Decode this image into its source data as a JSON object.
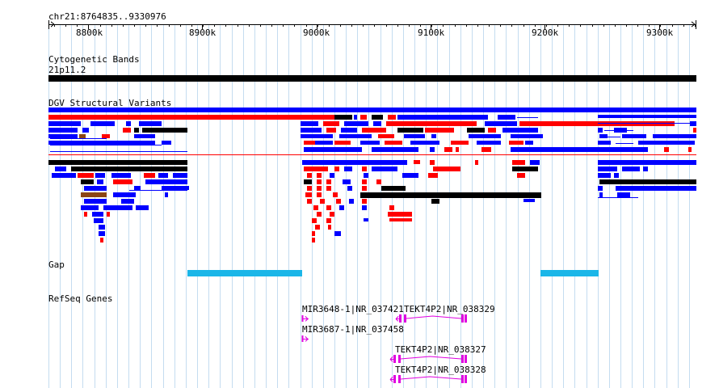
{
  "ruler": {
    "position": "chr21:8764835..9330976",
    "ticks": [
      "8800k",
      "8900k",
      "9000k",
      "9100k",
      "9200k",
      "9300k"
    ]
  },
  "tracks": {
    "cytoband": {
      "title": "Cytogenetic Bands",
      "band": "21p11.2"
    },
    "dgv": {
      "title": "DGV Structural Variants"
    },
    "gap": {
      "title": "Gap"
    },
    "refseq": {
      "title": "RefSeq Genes",
      "labels": [
        "MIR3648-1|NR_037421",
        "TEKT4P2|NR_038329",
        "MIR3687-1|NR_037458",
        "TEKT4P2|NR_038327",
        "TEKT4P2|NR_038328"
      ]
    }
  },
  "colors": {
    "gridline": "#c4dcf0",
    "ruler": "#000000",
    "cytoband": "#000000",
    "dgv_loss": "#ff0000",
    "dgv_gain": "#0000ff",
    "dgv_both": "#000000",
    "dgv_complex": "#8b4513",
    "gap": "#1bb6e8",
    "refseq": "#e000e0"
  }
}
